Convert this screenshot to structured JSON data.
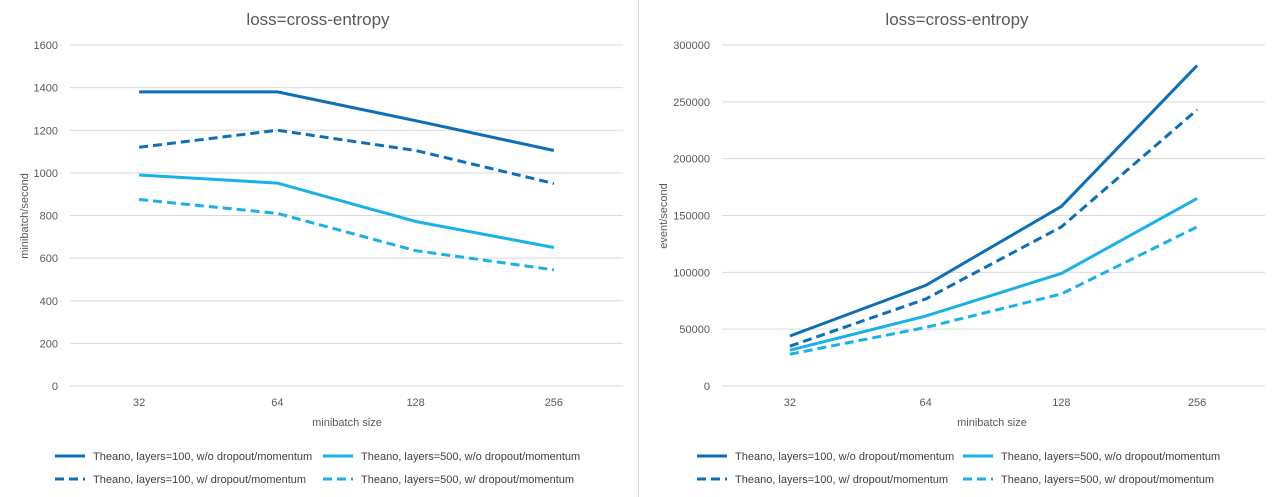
{
  "colors": {
    "dark_blue": "#0d6fb8",
    "light_blue": "#19b1e8",
    "grid": "#d9d9d9",
    "text": "#595959"
  },
  "chart_data": [
    {
      "type": "line",
      "title": "loss=cross-entropy",
      "xlabel": "minibatch size",
      "ylabel": "minibatch/second",
      "categories": [
        "32",
        "64",
        "128",
        "256"
      ],
      "ylim": [
        0,
        1600
      ],
      "yticks": [
        "0",
        "200",
        "400",
        "600",
        "800",
        "1000",
        "1200",
        "1400",
        "1600"
      ],
      "grid": true,
      "legend_position": "bottom",
      "series": [
        {
          "name": "Theano, layers=100, w/o dropout/momentum",
          "values": [
            1380,
            1380,
            1245,
            1105
          ],
          "color": "dark_blue",
          "dash": "solid"
        },
        {
          "name": "Theano, layers=500, w/o dropout/momentum",
          "values": [
            990,
            952,
            772,
            650
          ],
          "color": "light_blue",
          "dash": "solid"
        },
        {
          "name": "Theano, layers=100, w/ dropout/momentum",
          "values": [
            1120,
            1200,
            1105,
            950
          ],
          "color": "dark_blue",
          "dash": "dashed"
        },
        {
          "name": "Theano, layers=500, w/ dropout/momentum",
          "values": [
            875,
            810,
            635,
            545
          ],
          "color": "light_blue",
          "dash": "dashed"
        }
      ]
    },
    {
      "type": "line",
      "title": "loss=cross-entropy",
      "xlabel": "minibatch size",
      "ylabel": "event/second",
      "categories": [
        "32",
        "64",
        "128",
        "256"
      ],
      "ylim": [
        0,
        300000
      ],
      "yticks": [
        "0",
        "50000",
        "100000",
        "150000",
        "200000",
        "250000",
        "300000"
      ],
      "grid": true,
      "legend_position": "bottom",
      "series": [
        {
          "name": "Theano, layers=100, w/o dropout/momentum",
          "values": [
            44000,
            88500,
            158000,
            282000
          ],
          "color": "dark_blue",
          "dash": "solid"
        },
        {
          "name": "Theano, layers=500, w/o dropout/momentum",
          "values": [
            31500,
            61500,
            99000,
            165000
          ],
          "color": "light_blue",
          "dash": "solid"
        },
        {
          "name": "Theano, layers=100, w/ dropout/momentum",
          "values": [
            35000,
            76500,
            140000,
            243000
          ],
          "color": "dark_blue",
          "dash": "dashed"
        },
        {
          "name": "Theano, layers=500, w/ dropout/momentum",
          "values": [
            28000,
            51500,
            81000,
            140000
          ],
          "color": "light_blue",
          "dash": "dashed"
        }
      ]
    }
  ]
}
